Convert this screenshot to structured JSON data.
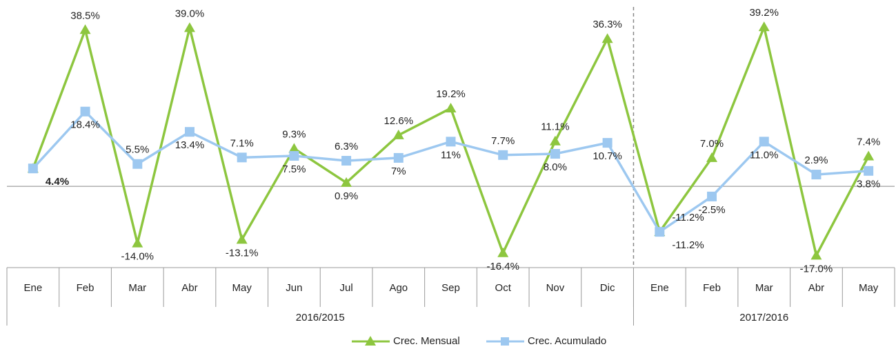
{
  "chart_data": {
    "type": "line",
    "categories": [
      "Ene",
      "Feb",
      "Mar",
      "Abr",
      "May",
      "Jun",
      "Jul",
      "Ago",
      "Sep",
      "Oct",
      "Nov",
      "Dic",
      "Ene",
      "Feb",
      "Mar",
      "Abr",
      "May"
    ],
    "groups": [
      {
        "label": "2016/2015",
        "count": 12
      },
      {
        "label": "2017/2016",
        "count": 5
      }
    ],
    "series": [
      {
        "name": "Crec. Mensual",
        "color": "#8dc63f",
        "marker": "triangle",
        "values": [
          4.4,
          38.5,
          -14.0,
          39.0,
          -13.1,
          9.3,
          0.9,
          12.6,
          19.2,
          -16.4,
          11.1,
          36.3,
          -11.2,
          7.0,
          39.2,
          -17.0,
          7.4
        ],
        "value_labels": [
          null,
          "38.5%",
          "-14.0%",
          "39.0%",
          "-13.1%",
          "9.3%",
          "0.9%",
          "12.6%",
          "19.2%",
          "-16.4%",
          "11.1%",
          "36.3%",
          "-11.2%",
          "7.0%",
          "39.2%",
          "-17.0%",
          "7.4%"
        ]
      },
      {
        "name": "Crec. Acumulado",
        "color": "#9dc8f0",
        "marker": "square",
        "values": [
          4.4,
          18.4,
          5.5,
          13.4,
          7.1,
          7.5,
          6.3,
          7,
          11,
          7.7,
          8.0,
          10.7,
          -11.2,
          -2.5,
          11.0,
          2.9,
          3.8
        ],
        "value_labels": [
          "4.4%",
          "18.4%",
          "5.5%",
          "13.4%",
          "7.1%",
          "7.5%",
          "6.3%",
          "7%",
          "11%",
          "7.7%",
          "8.0%",
          "10.7%",
          "-11.2%",
          "-2.5%",
          "11.0%",
          "2.9%",
          "3.8%"
        ]
      }
    ],
    "ylim": [
      -20,
      45
    ],
    "legend": "bottom"
  }
}
